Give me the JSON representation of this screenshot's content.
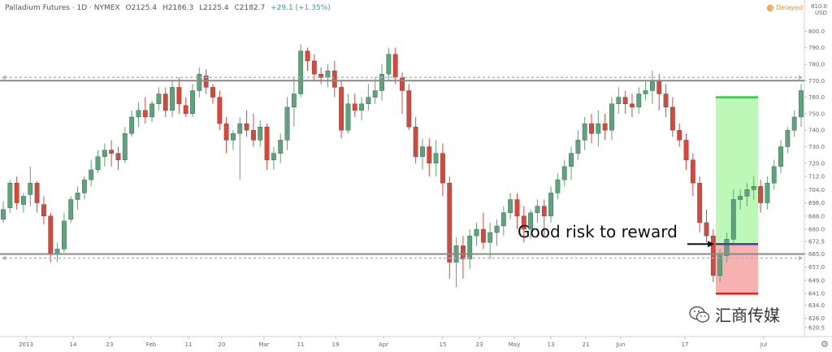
{
  "header": {
    "symbol": "Palladium Futures · 1D · NYMEX",
    "open": "O2125.4",
    "high": "H2186.3",
    "low": "L2125.4",
    "close": "C2182.7",
    "change": "+29.1 (+1.35%)"
  },
  "badge": {
    "label": "Delayed",
    "icon": "clock-icon"
  },
  "currency": {
    "top": "810.0",
    "unit": "USD"
  },
  "annotation": {
    "text": "Good risk to reward"
  },
  "watermark": {
    "text": "汇商传媒",
    "icon": "wechat-icon"
  },
  "colors": {
    "up": "#5aa57c",
    "down": "#d9473b",
    "level_line": "#8a8a8a",
    "entry": "#4b3f9e",
    "target": "#2ecc40",
    "stop": "#e3201b",
    "reward_zone": "#b7f7b0",
    "risk_zone": "#f7a8a8"
  },
  "chart_data": {
    "type": "candlestick",
    "title": "",
    "xlabel": "",
    "ylabel": "",
    "ylim": [
      615,
      812
    ],
    "y_ticks": [
      "620.5",
      "626.0",
      "634.0",
      "641.0",
      "649.0",
      "657.0",
      "665.0",
      "672.5",
      "680.0",
      "688.0",
      "696.0",
      "704.0",
      "712.0",
      "720.0",
      "730.0",
      "740.0",
      "750.0",
      "760.0",
      "770.0",
      "780.0",
      "790.0",
      "800.0",
      "810.0"
    ],
    "x_ticks": [
      "2013",
      "14",
      "23",
      "Feb",
      "11",
      "20",
      "Mar",
      "11",
      "19",
      "Apr",
      "15",
      "23",
      "May",
      "13",
      "21",
      "Jun",
      "17",
      "Jul"
    ],
    "levels": [
      {
        "name": "resistance",
        "value": 770
      },
      {
        "name": "support",
        "value": 665
      }
    ],
    "trade": {
      "entry": 671,
      "target": 760,
      "stop": 641
    },
    "candles": [
      [
        686,
        697,
        684,
        692
      ],
      [
        693,
        710,
        690,
        708
      ],
      [
        708,
        712,
        692,
        696
      ],
      [
        695,
        702,
        690,
        700
      ],
      [
        701,
        718,
        694,
        708
      ],
      [
        708,
        709,
        690,
        696
      ],
      [
        695,
        700,
        683,
        688
      ],
      [
        688,
        690,
        660,
        665
      ],
      [
        665,
        672,
        660,
        668
      ],
      [
        668,
        690,
        666,
        685
      ],
      [
        686,
        700,
        684,
        698
      ],
      [
        698,
        706,
        692,
        702
      ],
      [
        702,
        712,
        698,
        710
      ],
      [
        710,
        722,
        706,
        716
      ],
      [
        716,
        728,
        714,
        724
      ],
      [
        724,
        732,
        718,
        728
      ],
      [
        728,
        734,
        718,
        726
      ],
      [
        726,
        730,
        716,
        722
      ],
      [
        722,
        742,
        720,
        738
      ],
      [
        738,
        752,
        736,
        748
      ],
      [
        748,
        757,
        742,
        752
      ],
      [
        752,
        760,
        744,
        748
      ],
      [
        748,
        758,
        745,
        756
      ],
      [
        756,
        766,
        752,
        762
      ],
      [
        762,
        766,
        748,
        752
      ],
      [
        752,
        770,
        748,
        766
      ],
      [
        766,
        772,
        750,
        756
      ],
      [
        755,
        760,
        748,
        750
      ],
      [
        750,
        768,
        748,
        764
      ],
      [
        764,
        778,
        760,
        774
      ],
      [
        773,
        777,
        762,
        766
      ],
      [
        766,
        768,
        756,
        760
      ],
      [
        760,
        764,
        740,
        744
      ],
      [
        744,
        748,
        726,
        734
      ],
      [
        734,
        740,
        728,
        738
      ],
      [
        738,
        748,
        710,
        744
      ],
      [
        744,
        752,
        736,
        740
      ],
      [
        740,
        750,
        730,
        734
      ],
      [
        734,
        746,
        730,
        742
      ],
      [
        742,
        744,
        716,
        722
      ],
      [
        722,
        730,
        716,
        726
      ],
      [
        726,
        738,
        720,
        734
      ],
      [
        734,
        760,
        728,
        754
      ],
      [
        754,
        772,
        742,
        762
      ],
      [
        762,
        792,
        760,
        788
      ],
      [
        788,
        790,
        776,
        782
      ],
      [
        782,
        786,
        770,
        774
      ],
      [
        774,
        778,
        768,
        772
      ],
      [
        772,
        780,
        766,
        776
      ],
      [
        776,
        782,
        760,
        766
      ],
      [
        766,
        770,
        735,
        740
      ],
      [
        740,
        762,
        738,
        756
      ],
      [
        756,
        762,
        748,
        752
      ],
      [
        752,
        760,
        746,
        756
      ],
      [
        756,
        768,
        752,
        760
      ],
      [
        760,
        772,
        756,
        764
      ],
      [
        764,
        780,
        758,
        774
      ],
      [
        774,
        790,
        770,
        786
      ],
      [
        786,
        790,
        768,
        772
      ],
      [
        772,
        775,
        750,
        764
      ],
      [
        764,
        768,
        740,
        742
      ],
      [
        742,
        748,
        720,
        724
      ],
      [
        724,
        735,
        716,
        730
      ],
      [
        730,
        735,
        712,
        720
      ],
      [
        720,
        734,
        712,
        726
      ],
      [
        726,
        732,
        700,
        708
      ],
      [
        708,
        712,
        650,
        660
      ],
      [
        660,
        675,
        645,
        670
      ],
      [
        670,
        676,
        650,
        662
      ],
      [
        662,
        680,
        656,
        676
      ],
      [
        676,
        684,
        670,
        680
      ],
      [
        680,
        690,
        668,
        672
      ],
      [
        672,
        684,
        662,
        678
      ],
      [
        678,
        686,
        670,
        682
      ],
      [
        682,
        694,
        676,
        690
      ],
      [
        690,
        702,
        686,
        698
      ],
      [
        698,
        702,
        680,
        688
      ],
      [
        688,
        694,
        672,
        680
      ],
      [
        680,
        692,
        674,
        690
      ],
      [
        690,
        698,
        684,
        694
      ],
      [
        694,
        698,
        676,
        688
      ],
      [
        688,
        706,
        684,
        702
      ],
      [
        702,
        714,
        698,
        710
      ],
      [
        710,
        722,
        706,
        718
      ],
      [
        718,
        730,
        710,
        726
      ],
      [
        726,
        740,
        722,
        734
      ],
      [
        734,
        748,
        728,
        744
      ],
      [
        744,
        750,
        732,
        738
      ],
      [
        738,
        752,
        730,
        744
      ],
      [
        744,
        750,
        734,
        740
      ],
      [
        740,
        760,
        734,
        756
      ],
      [
        756,
        766,
        750,
        760
      ],
      [
        760,
        764,
        750,
        756
      ],
      [
        756,
        762,
        748,
        754
      ],
      [
        754,
        766,
        750,
        762
      ],
      [
        762,
        770,
        758,
        764
      ],
      [
        764,
        776,
        756,
        770
      ],
      [
        770,
        774,
        752,
        762
      ],
      [
        762,
        768,
        748,
        754
      ],
      [
        754,
        760,
        736,
        740
      ],
      [
        740,
        744,
        730,
        734
      ],
      [
        734,
        738,
        716,
        722
      ],
      [
        722,
        726,
        700,
        708
      ],
      [
        708,
        712,
        678,
        684
      ],
      [
        684,
        692,
        672,
        676
      ],
      [
        676,
        680,
        648,
        652
      ],
      [
        652,
        668,
        648,
        664
      ],
      [
        664,
        678,
        660,
        674
      ],
      [
        674,
        704,
        670,
        698
      ],
      [
        698,
        704,
        692,
        700
      ],
      [
        700,
        708,
        694,
        704
      ],
      [
        704,
        712,
        698,
        706
      ],
      [
        706,
        710,
        690,
        696
      ],
      [
        696,
        712,
        692,
        708
      ],
      [
        708,
        722,
        704,
        718
      ],
      [
        718,
        734,
        714,
        730
      ],
      [
        730,
        742,
        726,
        740
      ],
      [
        740,
        752,
        736,
        748
      ],
      [
        748,
        768,
        742,
        764
      ]
    ]
  }
}
